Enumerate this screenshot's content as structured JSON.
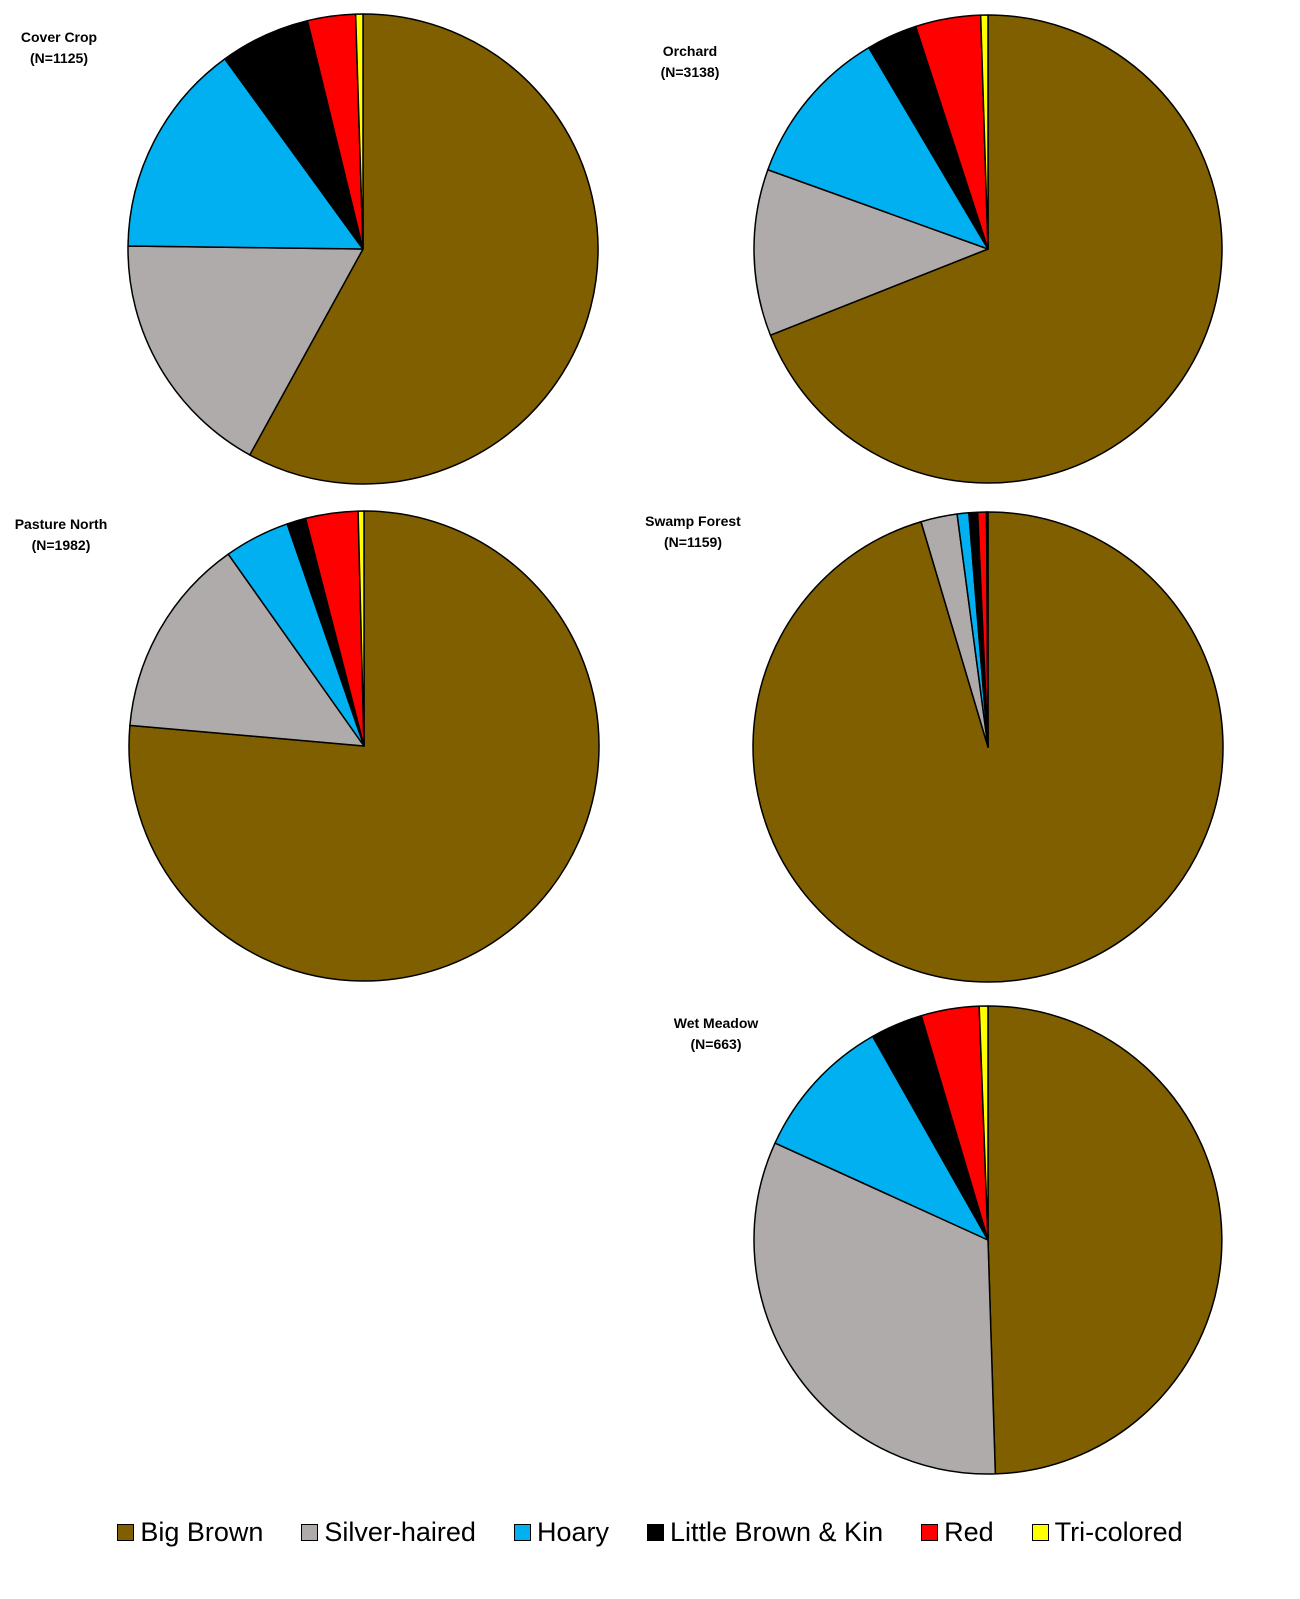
{
  "colors": {
    "Big Brown": "#7f5f00",
    "Silver-haired": "#afabab",
    "Hoary": "#00b0f0",
    "Little Brown & Kin": "#000000",
    "Red": "#ff0000",
    "Tri-colored": "#ffff00"
  },
  "legend": {
    "position": "bottom",
    "items": [
      "Big Brown",
      "Silver-haired",
      "Hoary",
      "Little Brown & Kin",
      "Red",
      "Tri-colored"
    ]
  },
  "chart_data": [
    {
      "type": "pie",
      "title": "Cover Crop",
      "subtitle": "(N=1125)",
      "slices": [
        {
          "label": "Big Brown",
          "value": 58.0
        },
        {
          "label": "Silver-haired",
          "value": 17.2
        },
        {
          "label": "Hoary",
          "value": 14.8
        },
        {
          "label": "Little Brown & Kin",
          "value": 6.2
        },
        {
          "label": "Red",
          "value": 3.3
        },
        {
          "label": "Tri-colored",
          "value": 0.5
        }
      ]
    },
    {
      "type": "pie",
      "title": "Orchard",
      "subtitle": "(N=3138)",
      "slices": [
        {
          "label": "Big Brown",
          "value": 69.0
        },
        {
          "label": "Silver-haired",
          "value": 11.5
        },
        {
          "label": "Hoary",
          "value": 11.0
        },
        {
          "label": "Little Brown & Kin",
          "value": 3.5
        },
        {
          "label": "Red",
          "value": 4.5
        },
        {
          "label": "Tri-colored",
          "value": 0.5
        }
      ]
    },
    {
      "type": "pie",
      "title": "Pasture North",
      "subtitle": "(N=1982)",
      "slices": [
        {
          "label": "Big Brown",
          "value": 76.4
        },
        {
          "label": "Silver-haired",
          "value": 13.8
        },
        {
          "label": "Hoary",
          "value": 4.5
        },
        {
          "label": "Little Brown & Kin",
          "value": 1.3
        },
        {
          "label": "Red",
          "value": 3.6
        },
        {
          "label": "Tri-colored",
          "value": 0.4
        }
      ]
    },
    {
      "type": "pie",
      "title": "Swamp Forest",
      "subtitle": "(N=1159)",
      "slices": [
        {
          "label": "Big Brown",
          "value": 95.4
        },
        {
          "label": "Silver-haired",
          "value": 2.5
        },
        {
          "label": "Hoary",
          "value": 0.8
        },
        {
          "label": "Little Brown & Kin",
          "value": 0.6
        },
        {
          "label": "Red",
          "value": 0.6
        },
        {
          "label": "Tri-colored",
          "value": 0.1
        }
      ]
    },
    {
      "type": "pie",
      "title": "Wet Meadow",
      "subtitle": "(N=663)",
      "slices": [
        {
          "label": "Big Brown",
          "value": 49.5
        },
        {
          "label": "Silver-haired",
          "value": 32.3
        },
        {
          "label": "Hoary",
          "value": 10.0
        },
        {
          "label": "Little Brown & Kin",
          "value": 3.6
        },
        {
          "label": "Red",
          "value": 4.0
        },
        {
          "label": "Tri-colored",
          "value": 0.6
        }
      ]
    }
  ]
}
